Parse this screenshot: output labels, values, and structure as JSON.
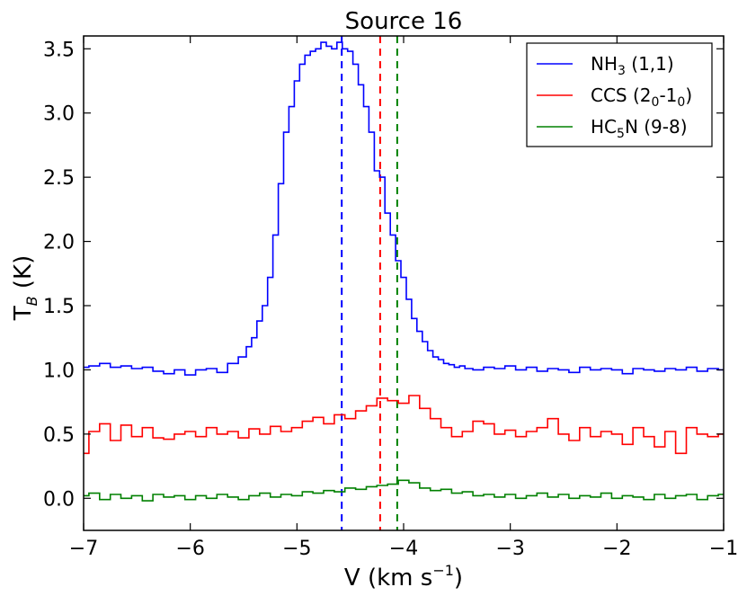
{
  "chart_data": {
    "type": "line",
    "drawstyle": "steps",
    "title": "Source 16",
    "xlabel": {
      "main": "V (km s",
      "sup": "−1",
      "tail": ")"
    },
    "ylabel": {
      "main": "T",
      "sub": "B",
      "tail": " (K)"
    },
    "xlim": [
      -7,
      -1
    ],
    "ylim": [
      -0.25,
      3.6
    ],
    "x_ticks": [
      -7,
      -6,
      -5,
      -4,
      -3,
      -2,
      -1
    ],
    "x_tick_labels": [
      "−7",
      "−6",
      "−5",
      "−4",
      "−3",
      "−2",
      "−1"
    ],
    "y_ticks": [
      0.0,
      0.5,
      1.0,
      1.5,
      2.0,
      2.5,
      3.0,
      3.5
    ],
    "y_tick_labels": [
      "0.0",
      "0.5",
      "1.0",
      "1.5",
      "2.0",
      "2.5",
      "3.0",
      "3.5"
    ],
    "grid": false,
    "legend_position": "top-right",
    "series": [
      {
        "name": "NH3 (1,1)",
        "label": {
          "main": "NH",
          "sub": "3",
          "tail": " (1,1)"
        },
        "color": "#0000ff",
        "x": [
          -7.0,
          -6.9,
          -6.8,
          -6.7,
          -6.6,
          -6.5,
          -6.4,
          -6.3,
          -6.2,
          -6.1,
          -6.0,
          -5.9,
          -5.8,
          -5.7,
          -5.6,
          -5.5,
          -5.45,
          -5.4,
          -5.35,
          -5.3,
          -5.25,
          -5.2,
          -5.15,
          -5.1,
          -5.05,
          -5.0,
          -4.95,
          -4.9,
          -4.85,
          -4.8,
          -4.75,
          -4.7,
          -4.65,
          -4.6,
          -4.55,
          -4.5,
          -4.45,
          -4.4,
          -4.35,
          -4.3,
          -4.25,
          -4.2,
          -4.15,
          -4.1,
          -4.05,
          -4.0,
          -3.95,
          -3.9,
          -3.85,
          -3.8,
          -3.75,
          -3.7,
          -3.65,
          -3.6,
          -3.55,
          -3.5,
          -3.45,
          -3.4,
          -3.3,
          -3.2,
          -3.1,
          -3.0,
          -2.9,
          -2.8,
          -2.7,
          -2.6,
          -2.5,
          -2.4,
          -2.3,
          -2.2,
          -2.1,
          -2.0,
          -1.9,
          -1.8,
          -1.7,
          -1.6,
          -1.5,
          -1.4,
          -1.3,
          -1.2,
          -1.1,
          -1.0
        ],
        "y": [
          1.02,
          1.03,
          1.05,
          1.02,
          1.03,
          1.01,
          1.02,
          0.99,
          0.97,
          1.0,
          0.96,
          1.0,
          1.01,
          0.98,
          1.05,
          1.1,
          1.18,
          1.25,
          1.38,
          1.5,
          1.72,
          2.05,
          2.45,
          2.85,
          3.05,
          3.25,
          3.38,
          3.45,
          3.48,
          3.5,
          3.55,
          3.52,
          3.5,
          3.55,
          3.5,
          3.48,
          3.38,
          3.22,
          3.05,
          2.85,
          2.55,
          2.5,
          2.22,
          2.05,
          1.85,
          1.72,
          1.55,
          1.4,
          1.3,
          1.22,
          1.15,
          1.1,
          1.08,
          1.05,
          1.04,
          1.02,
          1.03,
          1.01,
          1.0,
          1.02,
          1.01,
          1.03,
          1.0,
          1.02,
          0.99,
          1.01,
          1.0,
          0.98,
          1.02,
          1.0,
          1.01,
          1.0,
          0.97,
          1.01,
          1.0,
          0.99,
          1.01,
          1.0,
          1.02,
          0.99,
          1.01,
          1.0
        ]
      },
      {
        "name": "CCS (20-10)",
        "label": {
          "main": "CCS (2",
          "sub1": "0",
          "mid": "-1",
          "sub2": "0",
          "tail": ")"
        },
        "color": "#ff0000",
        "x": [
          -7.0,
          -6.9,
          -6.8,
          -6.7,
          -6.6,
          -6.5,
          -6.4,
          -6.3,
          -6.2,
          -6.1,
          -6.0,
          -5.9,
          -5.8,
          -5.7,
          -5.6,
          -5.5,
          -5.4,
          -5.3,
          -5.2,
          -5.1,
          -5.0,
          -4.9,
          -4.8,
          -4.7,
          -4.6,
          -4.5,
          -4.4,
          -4.3,
          -4.2,
          -4.1,
          -4.0,
          -3.9,
          -3.8,
          -3.7,
          -3.6,
          -3.5,
          -3.4,
          -3.3,
          -3.2,
          -3.1,
          -3.0,
          -2.9,
          -2.8,
          -2.7,
          -2.6,
          -2.5,
          -2.4,
          -2.3,
          -2.2,
          -2.1,
          -2.0,
          -1.9,
          -1.8,
          -1.7,
          -1.6,
          -1.5,
          -1.4,
          -1.3,
          -1.2,
          -1.1,
          -1.0
        ],
        "y": [
          0.35,
          0.52,
          0.58,
          0.45,
          0.57,
          0.48,
          0.55,
          0.47,
          0.46,
          0.5,
          0.52,
          0.48,
          0.55,
          0.5,
          0.52,
          0.47,
          0.54,
          0.5,
          0.56,
          0.52,
          0.55,
          0.6,
          0.63,
          0.58,
          0.65,
          0.62,
          0.68,
          0.72,
          0.78,
          0.76,
          0.74,
          0.8,
          0.7,
          0.62,
          0.55,
          0.48,
          0.52,
          0.6,
          0.58,
          0.5,
          0.53,
          0.48,
          0.52,
          0.55,
          0.62,
          0.5,
          0.45,
          0.55,
          0.48,
          0.52,
          0.5,
          0.42,
          0.55,
          0.48,
          0.4,
          0.52,
          0.35,
          0.55,
          0.5,
          0.48,
          0.5
        ]
      },
      {
        "name": "HC5N (9-8)",
        "label": {
          "main": "HC",
          "sub": "5",
          "tail": "N (9-8)"
        },
        "color": "#008000",
        "x": [
          -7.0,
          -6.9,
          -6.8,
          -6.7,
          -6.6,
          -6.5,
          -6.4,
          -6.3,
          -6.2,
          -6.1,
          -6.0,
          -5.9,
          -5.8,
          -5.7,
          -5.6,
          -5.5,
          -5.4,
          -5.3,
          -5.2,
          -5.1,
          -5.0,
          -4.9,
          -4.8,
          -4.7,
          -4.6,
          -4.5,
          -4.4,
          -4.3,
          -4.2,
          -4.1,
          -4.0,
          -3.9,
          -3.8,
          -3.7,
          -3.6,
          -3.5,
          -3.4,
          -3.3,
          -3.2,
          -3.1,
          -3.0,
          -2.9,
          -2.8,
          -2.7,
          -2.6,
          -2.5,
          -2.4,
          -2.3,
          -2.2,
          -2.1,
          -2.0,
          -1.9,
          -1.8,
          -1.7,
          -1.6,
          -1.5,
          -1.4,
          -1.3,
          -1.2,
          -1.1,
          -1.0
        ],
        "y": [
          0.02,
          0.04,
          -0.01,
          0.03,
          0.0,
          0.02,
          -0.02,
          0.03,
          0.01,
          0.02,
          -0.01,
          0.02,
          0.0,
          0.03,
          0.01,
          -0.01,
          0.02,
          0.04,
          0.01,
          0.03,
          0.02,
          0.05,
          0.04,
          0.06,
          0.05,
          0.08,
          0.07,
          0.09,
          0.1,
          0.11,
          0.14,
          0.12,
          0.08,
          0.06,
          0.07,
          0.04,
          0.05,
          0.02,
          0.03,
          0.01,
          0.03,
          0.0,
          0.02,
          0.04,
          0.01,
          0.03,
          0.0,
          0.02,
          0.01,
          0.04,
          0.0,
          0.02,
          0.01,
          -0.01,
          0.03,
          0.0,
          0.02,
          0.03,
          -0.01,
          0.02,
          0.03
        ]
      }
    ],
    "vlines": [
      {
        "x": -4.58,
        "color": "#0000ff",
        "style": "dashed"
      },
      {
        "x": -4.22,
        "color": "#ff0000",
        "style": "dashed"
      },
      {
        "x": -4.06,
        "color": "#008000",
        "style": "dashed"
      }
    ]
  }
}
